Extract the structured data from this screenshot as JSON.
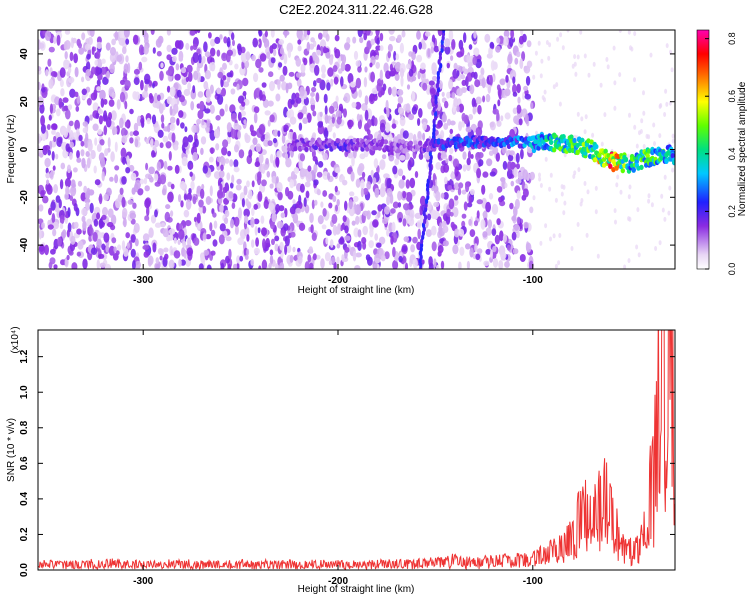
{
  "figure": {
    "title": "C2E2.2024.311.22.46.G28"
  },
  "colors": {
    "spectrum_low": "#e8d6f5",
    "spectrum_mid": "#8a2be2",
    "snr_line": "#ee3333",
    "axis": "#000000"
  },
  "chart_data": [
    {
      "type": "heatmap",
      "title": "",
      "xlabel": "Height of straight line (km)",
      "ylabel": "Frequency (Hz)",
      "xlim": [
        -354,
        -27
      ],
      "ylim": [
        -50,
        50
      ],
      "x_tick_values": [
        -300,
        -200,
        -100
      ],
      "x_tick_labels": [
        "-300",
        "-200",
        "-100"
      ],
      "y_tick_values": [
        -40,
        -20,
        0,
        20,
        40
      ],
      "y_tick_labels": [
        "-40",
        "-20",
        "0",
        "20",
        "40"
      ],
      "colorbar": {
        "label": "Normalized spectral amplitude",
        "range": [
          0,
          0.83
        ],
        "tick_values": [
          0.0,
          0.2,
          0.4,
          0.6,
          0.8
        ],
        "tick_labels": [
          "0.0",
          "0.2",
          "0.4",
          "0.6",
          "0.8"
        ],
        "colormap": "rainbow (white-violet-blue-cyan-green-yellow-red-magenta)"
      },
      "noise_region_x": [
        -354,
        -100
      ],
      "tilted_feature": {
        "x": [
          -158,
          -146
        ],
        "y": [
          -50,
          50
        ]
      },
      "ridge": {
        "x": [
          -225,
          -200,
          -180,
          -160,
          -140,
          -120,
          -100,
          -85,
          -70,
          -60,
          -50,
          -40,
          -27
        ],
        "y": [
          2,
          2,
          2,
          1,
          3,
          3,
          3,
          3,
          0,
          -5,
          -6,
          -3,
          -2
        ],
        "amplitude": [
          0.15,
          0.2,
          0.15,
          0.15,
          0.3,
          0.25,
          0.35,
          0.5,
          0.5,
          0.75,
          0.45,
          0.5,
          0.4
        ]
      }
    },
    {
      "type": "line",
      "title": "",
      "xlabel": "Height of straight line (km)",
      "ylabel": "SNR (10 * v/v)",
      "y_multiplier_label": "(x10⁴)",
      "xlim": [
        -354,
        -27
      ],
      "ylim": [
        0,
        1.35
      ],
      "x_tick_values": [
        -300,
        -200,
        -100
      ],
      "x_tick_labels": [
        "-300",
        "-200",
        "-100"
      ],
      "y_tick_values": [
        0,
        0.2,
        0.4,
        0.6,
        0.8,
        1.0,
        1.2
      ],
      "y_tick_labels": [
        "0.0",
        "0.2",
        "0.4",
        "0.6",
        "0.8",
        "1.0",
        "1.2"
      ],
      "series": [
        {
          "x": [
            -354,
            -340,
            -320,
            -300,
            -280,
            -260,
            -240,
            -220,
            -200,
            -180,
            -160,
            -150,
            -140,
            -130,
            -120,
            -110,
            -100,
            -95,
            -90,
            -85,
            -80,
            -76,
            -72,
            -68,
            -65,
            -62,
            -58,
            -55,
            -50,
            -45,
            -42,
            -40,
            -38,
            -36,
            -34,
            -32,
            -30,
            -28,
            -27
          ],
          "y": [
            0.03,
            0.03,
            0.035,
            0.03,
            0.035,
            0.03,
            0.03,
            0.03,
            0.03,
            0.03,
            0.035,
            0.04,
            0.05,
            0.04,
            0.05,
            0.05,
            0.06,
            0.08,
            0.1,
            0.12,
            0.18,
            0.28,
            0.32,
            0.3,
            0.38,
            0.4,
            0.25,
            0.12,
            0.1,
            0.12,
            0.22,
            0.4,
            0.5,
            0.8,
            1.2,
            1.0,
            1.32,
            0.9,
            0.5
          ]
        }
      ]
    }
  ]
}
